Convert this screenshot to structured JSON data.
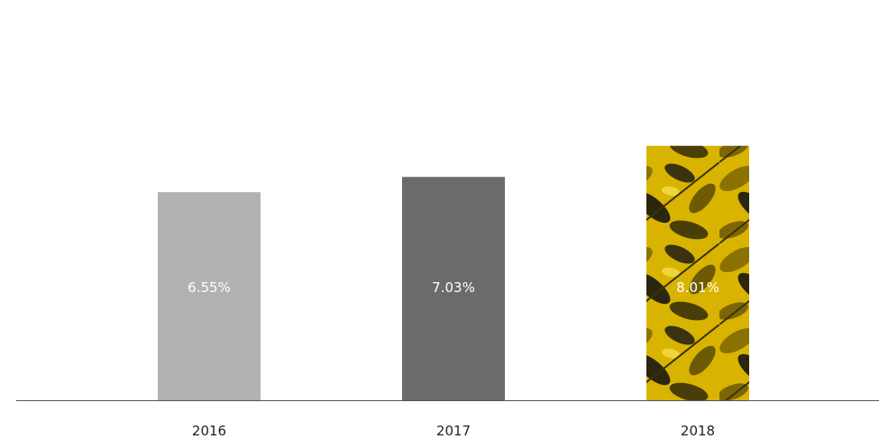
{
  "chart_data": {
    "type": "bar",
    "categories": [
      "2016",
      "2017",
      "2018"
    ],
    "values": [
      6.55,
      7.03,
      8.01
    ],
    "value_labels": [
      "6.55%",
      "7.03%",
      "8.01%"
    ],
    "title": "",
    "xlabel": "",
    "ylabel": "",
    "ylim": [
      0,
      12.6
    ],
    "grid": false,
    "legend": "none",
    "bar_colors": [
      "#b1b1b1",
      "#6b6b6b",
      "#c9a400"
    ],
    "highlight_fill": "leaf-pattern",
    "axis_color": "#555555"
  }
}
